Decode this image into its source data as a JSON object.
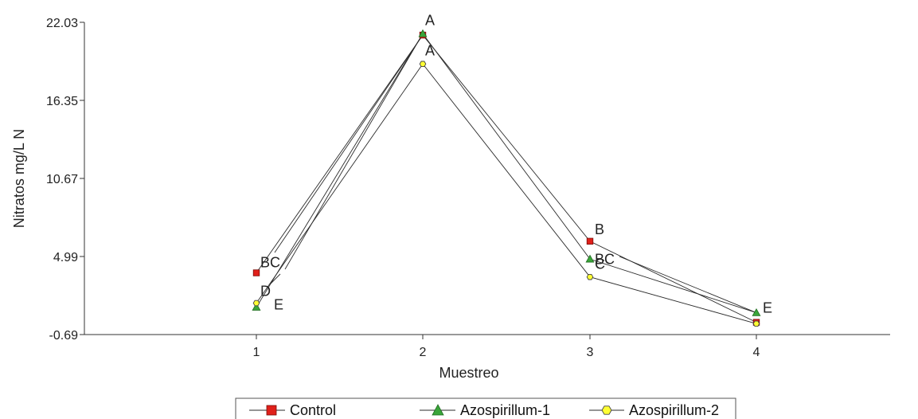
{
  "chart_data": {
    "type": "line",
    "xlabel": "Muestreo",
    "ylabel": "Nitratos mg/L N",
    "x": [
      1,
      2,
      3,
      4
    ],
    "xlim": [
      0.5,
      4.9
    ],
    "ylim": [
      -0.69,
      22.03
    ],
    "yticks": [
      -0.69,
      4.99,
      10.67,
      16.35,
      22.03
    ],
    "ytick_labels": [
      "-0.69",
      "4.99",
      "10.67",
      "16.35",
      "22.03"
    ],
    "xtick_labels": [
      "1",
      "2",
      "3",
      "4"
    ],
    "legend_position": "bottom",
    "series": [
      {
        "name": "Control",
        "marker": "square",
        "color": "#e0201a",
        "values": [
          3.8,
          21.1,
          6.1,
          0.2
        ]
      },
      {
        "name": "Azospirillum-1",
        "marker": "triangle",
        "color": "#3aa53a",
        "values": [
          1.3,
          21.2,
          4.8,
          0.9
        ]
      },
      {
        "name": "Azospirillum-2",
        "marker": "hexagon",
        "color": "#ffff33",
        "values": [
          1.6,
          19.0,
          3.5,
          0.1
        ]
      }
    ],
    "annotations": [
      {
        "text": "BC",
        "x": 1,
        "y": 3.8
      },
      {
        "text": "D",
        "x": 1,
        "y": 1.6
      },
      {
        "text": "E",
        "x": 1,
        "y": 1.3
      },
      {
        "text": "A",
        "x": 2,
        "y": 21.2
      },
      {
        "text": "A",
        "x": 2,
        "y": 19.0
      },
      {
        "text": "B",
        "x": 3,
        "y": 6.1
      },
      {
        "text": "BC",
        "x": 3,
        "y": 4.8
      },
      {
        "text": "C",
        "x": 3,
        "y": 3.5
      },
      {
        "text": "E",
        "x": 4,
        "y": 0.9
      }
    ]
  }
}
